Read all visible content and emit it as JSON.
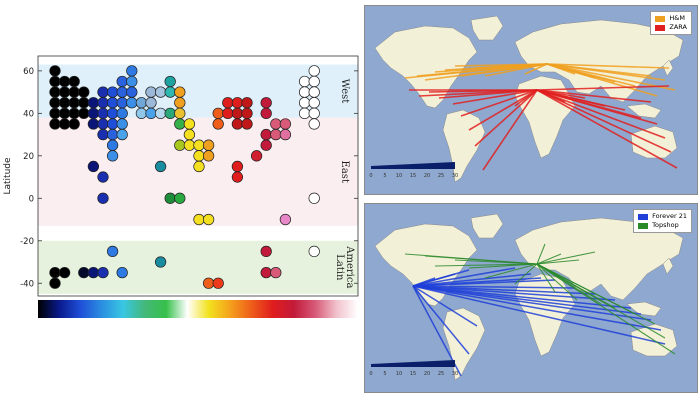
{
  "chart_data": [
    {
      "type": "scatter",
      "ylabel": "Latitude",
      "ylim": [
        -46,
        67
      ],
      "yticks": [
        60,
        40,
        20,
        0,
        -20,
        -40
      ],
      "grid": false,
      "regions": [
        {
          "label": "West",
          "range": [
            38,
            63
          ],
          "color": "#dff0fa"
        },
        {
          "label": "East",
          "range": [
            -13,
            38
          ],
          "color": "#fbeef1"
        },
        {
          "label": "Latin America",
          "lines": [
            "Latin",
            "America"
          ],
          "range": [
            -45,
            -20
          ],
          "color": "#e6f2dd"
        }
      ],
      "colorbar": [
        "#000000",
        "#0a1a8c",
        "#1f4fd8",
        "#2a8fe0",
        "#39c7e3",
        "#44b87a",
        "#36c04a",
        "#ffffff",
        "#f2e21e",
        "#f5a11c",
        "#ee5e1a",
        "#e01d1d",
        "#c21a3a",
        "#d85a78",
        "#f1c2cc",
        "#ffffff"
      ],
      "points": [
        {
          "col": 0,
          "lat": 60,
          "color": "#000000"
        },
        {
          "col": 0,
          "lat": 55,
          "color": "#000000"
        },
        {
          "col": 0,
          "lat": 50,
          "color": "#000000"
        },
        {
          "col": 0,
          "lat": 45,
          "color": "#000000"
        },
        {
          "col": 0,
          "lat": 40,
          "color": "#000000"
        },
        {
          "col": 0,
          "lat": 35,
          "color": "#000000"
        },
        {
          "col": 0,
          "lat": -35,
          "color": "#000000"
        },
        {
          "col": 0,
          "lat": -40,
          "color": "#000000"
        },
        {
          "col": 1,
          "lat": 55,
          "color": "#000000"
        },
        {
          "col": 1,
          "lat": 50,
          "color": "#000000"
        },
        {
          "col": 1,
          "lat": 45,
          "color": "#000000"
        },
        {
          "col": 1,
          "lat": 40,
          "color": "#000000"
        },
        {
          "col": 1,
          "lat": 35,
          "color": "#000000"
        },
        {
          "col": 1,
          "lat": -35,
          "color": "#000000"
        },
        {
          "col": 2,
          "lat": 55,
          "color": "#000000"
        },
        {
          "col": 2,
          "lat": 50,
          "color": "#000000"
        },
        {
          "col": 2,
          "lat": 45,
          "color": "#000000"
        },
        {
          "col": 2,
          "lat": 40,
          "color": "#000000"
        },
        {
          "col": 2,
          "lat": 35,
          "color": "#000000"
        },
        {
          "col": 3,
          "lat": 50,
          "color": "#000000"
        },
        {
          "col": 3,
          "lat": 45,
          "color": "#000000"
        },
        {
          "col": 3,
          "lat": 40,
          "color": "#000000"
        },
        {
          "col": 3,
          "lat": -35,
          "color": "#050a2a"
        },
        {
          "col": 4,
          "lat": 45,
          "color": "#0b1578"
        },
        {
          "col": 4,
          "lat": 40,
          "color": "#0b1578"
        },
        {
          "col": 4,
          "lat": 35,
          "color": "#0b1578"
        },
        {
          "col": 4,
          "lat": 15,
          "color": "#0b1578"
        },
        {
          "col": 4,
          "lat": -35,
          "color": "#0b1578"
        },
        {
          "col": 5,
          "lat": 50,
          "color": "#1a2fb0"
        },
        {
          "col": 5,
          "lat": 45,
          "color": "#1a2fb0"
        },
        {
          "col": 5,
          "lat": 40,
          "color": "#1a2fb0"
        },
        {
          "col": 5,
          "lat": 35,
          "color": "#1a2fb0"
        },
        {
          "col": 5,
          "lat": 30,
          "color": "#1a2fb0"
        },
        {
          "col": 5,
          "lat": 10,
          "color": "#1a2fb0"
        },
        {
          "col": 5,
          "lat": 0,
          "color": "#1a2fb0"
        },
        {
          "col": 5,
          "lat": -35,
          "color": "#1a2fb0"
        },
        {
          "col": 6,
          "lat": 50,
          "color": "#1f4fd8"
        },
        {
          "col": 6,
          "lat": 45,
          "color": "#1f4fd8"
        },
        {
          "col": 6,
          "lat": 40,
          "color": "#1f4fd8"
        },
        {
          "col": 6,
          "lat": 35,
          "color": "#1f4fd8"
        },
        {
          "col": 6,
          "lat": 30,
          "color": "#2a62de"
        },
        {
          "col": 6,
          "lat": 25,
          "color": "#2f79e2"
        },
        {
          "col": 6,
          "lat": 20,
          "color": "#3b8fe6"
        },
        {
          "col": 6,
          "lat": -25,
          "color": "#2f79e2"
        },
        {
          "col": 7,
          "lat": 55,
          "color": "#2a62de"
        },
        {
          "col": 7,
          "lat": 50,
          "color": "#2a62de"
        },
        {
          "col": 7,
          "lat": 45,
          "color": "#2a62de"
        },
        {
          "col": 7,
          "lat": 40,
          "color": "#2f79e2"
        },
        {
          "col": 7,
          "lat": 35,
          "color": "#3b8fe6"
        },
        {
          "col": 7,
          "lat": 30,
          "color": "#4aa3ea"
        },
        {
          "col": 7,
          "lat": -35,
          "color": "#2f79e2"
        },
        {
          "col": 8,
          "lat": 60,
          "color": "#2f79e2"
        },
        {
          "col": 8,
          "lat": 55,
          "color": "#3b8fe6"
        },
        {
          "col": 8,
          "lat": 50,
          "color": "#2a62de"
        },
        {
          "col": 8,
          "lat": 45,
          "color": "#3b8fe6"
        },
        {
          "col": 9,
          "lat": 45,
          "color": "#6fa8d8"
        },
        {
          "col": 9,
          "lat": 40,
          "color": "#8fc6ea"
        },
        {
          "col": 10,
          "lat": 50,
          "color": "#9cb8d8"
        },
        {
          "col": 10,
          "lat": 45,
          "color": "#9cb8d8"
        },
        {
          "col": 10,
          "lat": 40,
          "color": "#4aa3ea"
        },
        {
          "col": 11,
          "lat": 50,
          "color": "#a6c4e0"
        },
        {
          "col": 11,
          "lat": 40,
          "color": "#b8d8ee"
        },
        {
          "col": 11,
          "lat": 15,
          "color": "#1a8ca0"
        },
        {
          "col": 11,
          "lat": -30,
          "color": "#1a8ca0"
        },
        {
          "col": 12,
          "lat": 55,
          "color": "#1fa3a0"
        },
        {
          "col": 12,
          "lat": 50,
          "color": "#2fb8b0"
        },
        {
          "col": 12,
          "lat": 40,
          "color": "#2aa87a"
        },
        {
          "col": 12,
          "lat": 0,
          "color": "#1f8c3a"
        },
        {
          "col": 13,
          "lat": 50,
          "color": "#f0a020"
        },
        {
          "col": 13,
          "lat": 45,
          "color": "#f0a020"
        },
        {
          "col": 13,
          "lat": 40,
          "color": "#e8c030"
        },
        {
          "col": 13,
          "lat": 35,
          "color": "#38b04a"
        },
        {
          "col": 13,
          "lat": 25,
          "color": "#a8c820"
        },
        {
          "col": 13,
          "lat": 0,
          "color": "#2aa840"
        },
        {
          "col": 14,
          "lat": 35,
          "color": "#f4e020"
        },
        {
          "col": 14,
          "lat": 30,
          "color": "#f4e020"
        },
        {
          "col": 14,
          "lat": 25,
          "color": "#f4e020"
        },
        {
          "col": 15,
          "lat": 25,
          "color": "#f4e020"
        },
        {
          "col": 15,
          "lat": 20,
          "color": "#f4e020"
        },
        {
          "col": 15,
          "lat": 15,
          "color": "#f4e020"
        },
        {
          "col": 15,
          "lat": -10,
          "color": "#f4e020"
        },
        {
          "col": 16,
          "lat": 25,
          "color": "#f0a020"
        },
        {
          "col": 16,
          "lat": 20,
          "color": "#f0a020"
        },
        {
          "col": 16,
          "lat": -10,
          "color": "#f4e020"
        },
        {
          "col": 16,
          "lat": -40,
          "color": "#ee5e1a"
        },
        {
          "col": 17,
          "lat": 40,
          "color": "#ee5e1a"
        },
        {
          "col": 17,
          "lat": 35,
          "color": "#ee5e1a"
        },
        {
          "col": 17,
          "lat": -40,
          "color": "#ee3a1a"
        },
        {
          "col": 18,
          "lat": 45,
          "color": "#e01d1d"
        },
        {
          "col": 18,
          "lat": 40,
          "color": "#e01d1d"
        },
        {
          "col": 19,
          "lat": 45,
          "color": "#e01d1d"
        },
        {
          "col": 19,
          "lat": 40,
          "color": "#c01818"
        },
        {
          "col": 19,
          "lat": 35,
          "color": "#c01818"
        },
        {
          "col": 19,
          "lat": 15,
          "color": "#e01d1d"
        },
        {
          "col": 19,
          "lat": 10,
          "color": "#e01d1d"
        },
        {
          "col": 20,
          "lat": 45,
          "color": "#c01818"
        },
        {
          "col": 20,
          "lat": 40,
          "color": "#c01818"
        },
        {
          "col": 20,
          "lat": 35,
          "color": "#c01818"
        },
        {
          "col": 21,
          "lat": 20,
          "color": "#d02030"
        },
        {
          "col": 22,
          "lat": 45,
          "color": "#c21a3a"
        },
        {
          "col": 22,
          "lat": 40,
          "color": "#c21a3a"
        },
        {
          "col": 22,
          "lat": 30,
          "color": "#c21a3a"
        },
        {
          "col": 22,
          "lat": 25,
          "color": "#c21a3a"
        },
        {
          "col": 22,
          "lat": -25,
          "color": "#c21a3a"
        },
        {
          "col": 22,
          "lat": -35,
          "color": "#c21a3a"
        },
        {
          "col": 23,
          "lat": 35,
          "color": "#d85a78"
        },
        {
          "col": 23,
          "lat": 30,
          "color": "#d85a78"
        },
        {
          "col": 23,
          "lat": -35,
          "color": "#d85a78"
        },
        {
          "col": 24,
          "lat": 35,
          "color": "#d85a78"
        },
        {
          "col": 24,
          "lat": 30,
          "color": "#e070a0"
        },
        {
          "col": 24,
          "lat": -10,
          "color": "#e888c8"
        },
        {
          "col": 26,
          "lat": 55,
          "color": "#ffffff"
        },
        {
          "col": 26,
          "lat": 50,
          "color": "#ffffff"
        },
        {
          "col": 26,
          "lat": 45,
          "color": "#ffffff"
        },
        {
          "col": 26,
          "lat": 40,
          "color": "#ffffff"
        },
        {
          "col": 27,
          "lat": 60,
          "color": "#ffffff"
        },
        {
          "col": 27,
          "lat": 55,
          "color": "#ffffff"
        },
        {
          "col": 27,
          "lat": 50,
          "color": "#ffffff"
        },
        {
          "col": 27,
          "lat": 45,
          "color": "#ffffff"
        },
        {
          "col": 27,
          "lat": 40,
          "color": "#ffffff"
        },
        {
          "col": 27,
          "lat": 35,
          "color": "#ffffff"
        },
        {
          "col": 27,
          "lat": 0,
          "color": "#ffffff"
        },
        {
          "col": 27,
          "lat": -25,
          "color": "#ffffff"
        }
      ]
    },
    {
      "type": "map",
      "legend": [
        {
          "name": "H&M",
          "color": "#f0a020"
        },
        {
          "name": "ZARA",
          "color": "#e02020"
        }
      ],
      "scale_ticks": [
        "0",
        "5",
        "10",
        "15",
        "20",
        "25",
        "30"
      ]
    },
    {
      "type": "map",
      "legend": [
        {
          "name": "Forever 21",
          "color": "#1f3fd8"
        },
        {
          "name": "Topshop",
          "color": "#2a8a2a"
        }
      ],
      "scale_ticks": [
        "0",
        "5",
        "10",
        "15",
        "20",
        "25",
        "30"
      ]
    }
  ],
  "colors": {
    "ocean": "#8fa8cf",
    "land": "#f3f0d8",
    "border": "#8a8a8a",
    "scalebar": "#0a1f6a"
  }
}
